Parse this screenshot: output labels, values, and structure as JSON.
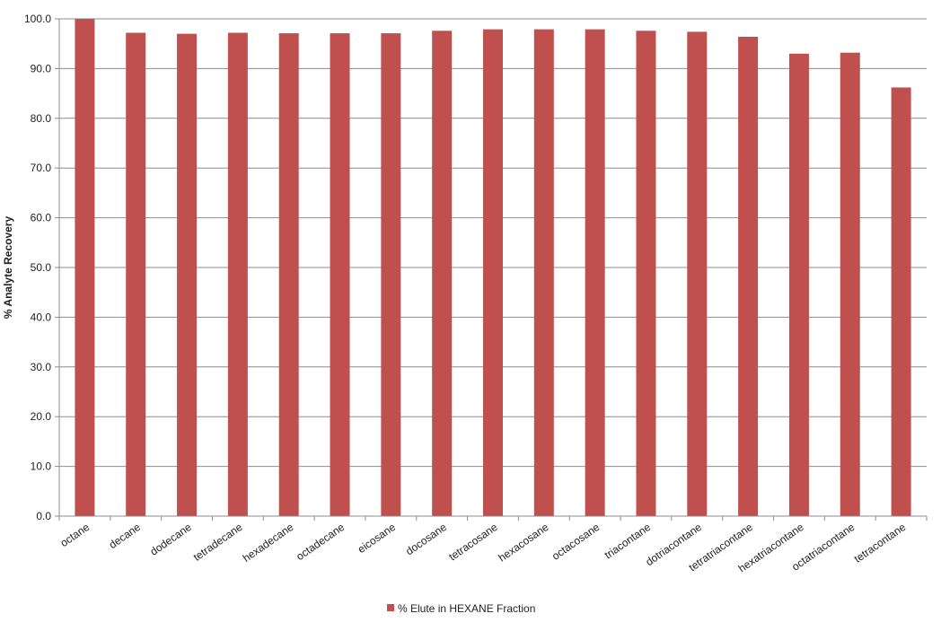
{
  "chart_data": {
    "type": "bar",
    "categories": [
      "octane",
      "decane",
      "dodecane",
      "tetradecane",
      "hexadecane",
      "octadecane",
      "eicosane",
      "docosane",
      "tetracosane",
      "hexacosane",
      "octacosane",
      "triacontane",
      "dotriacontane",
      "tetratriacontane",
      "hexatriacontane",
      "octatriacontane",
      "tetracontane"
    ],
    "series": [
      {
        "name": "% Elute in HEXANE Fraction",
        "values": [
          100.0,
          97.2,
          97.0,
          97.2,
          97.1,
          97.1,
          97.1,
          97.6,
          97.9,
          97.9,
          97.9,
          97.6,
          97.4,
          96.4,
          93.0,
          93.2,
          86.2
        ]
      }
    ],
    "title": "",
    "xlabel": "",
    "ylabel": "% Analyte Recovery",
    "ylim": [
      0,
      100
    ],
    "yticks": [
      "0.0",
      "10.0",
      "20.0",
      "30.0",
      "40.0",
      "50.0",
      "60.0",
      "70.0",
      "80.0",
      "90.0",
      "100.0"
    ],
    "grid": true,
    "legend_position": "bottom",
    "colors": {
      "bar": "#c0504d",
      "grid": "#8c8c8c",
      "axis": "#8c8c8c"
    }
  }
}
